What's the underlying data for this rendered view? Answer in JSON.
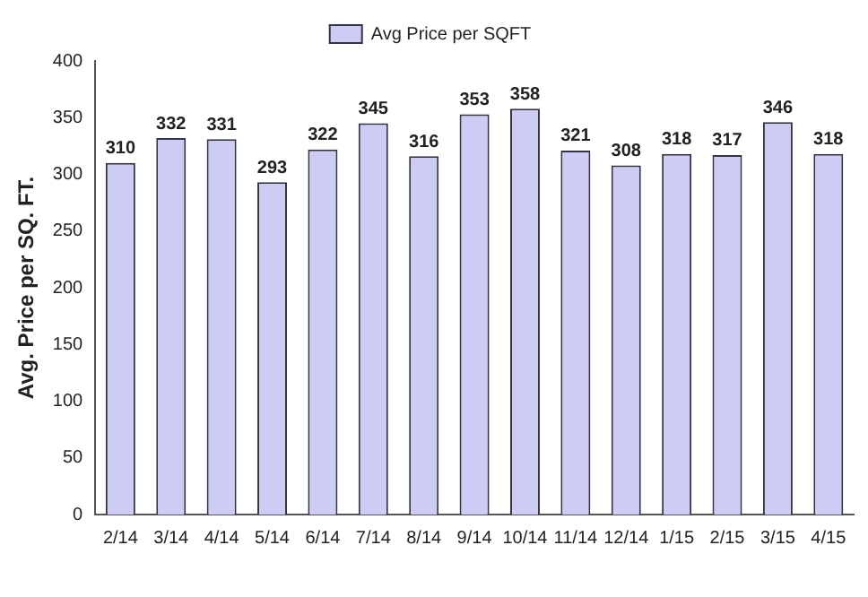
{
  "chart_data": {
    "type": "bar",
    "ylabel": "Avg. Price per SQ. FT.",
    "categories": [
      "2/14",
      "3/14",
      "4/14",
      "5/14",
      "6/14",
      "7/14",
      "8/14",
      "9/14",
      "10/14",
      "11/14",
      "12/14",
      "1/15",
      "2/15",
      "3/15",
      "4/15"
    ],
    "series": [
      {
        "name": "Avg Price per SQFT",
        "color": "#ccccf5",
        "values": [
          310,
          332,
          331,
          293,
          322,
          345,
          316,
          353,
          358,
          321,
          308,
          318,
          317,
          346,
          318
        ]
      }
    ],
    "ylim": [
      0,
      400
    ],
    "yticks": [
      0,
      50,
      100,
      150,
      200,
      250,
      300,
      350,
      400
    ],
    "grid": false,
    "legend": "top",
    "data_labels": true
  }
}
